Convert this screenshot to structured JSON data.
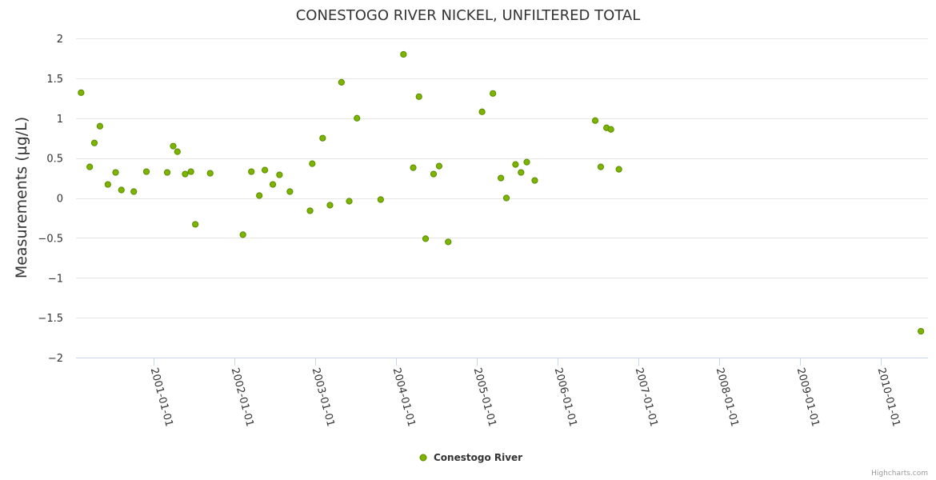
{
  "chart_data": {
    "type": "scatter",
    "title": "CONESTOGO RIVER NICKEL, UNFILTERED TOTAL",
    "xlabel": "",
    "ylabel": "Measurements (µg/L)",
    "ylim": [
      -2,
      2
    ],
    "yticks": [
      2,
      1.5,
      1,
      0.5,
      0,
      -0.5,
      -1,
      -1.5,
      -2
    ],
    "ytick_labels": [
      "2",
      "1.5",
      "1",
      "0.5",
      "0",
      "−0.5",
      "−1",
      "−1.5",
      "−2"
    ],
    "xlim": [
      "2000-01-18",
      "2010-08-01"
    ],
    "xticks": [
      "2001-01-01",
      "2002-01-01",
      "2003-01-01",
      "2004-01-01",
      "2005-01-01",
      "2006-01-01",
      "2007-01-01",
      "2008-01-01",
      "2009-01-01",
      "2010-01-01"
    ],
    "grid": true,
    "legend_position": "bottom-center",
    "marker_color": "#7cb500",
    "marker_stroke": "#5a8a00",
    "series": [
      {
        "name": "Conestogo River",
        "points": [
          [
            "2000-02-10",
            1.32
          ],
          [
            "2000-03-20",
            0.39
          ],
          [
            "2000-04-10",
            0.69
          ],
          [
            "2000-05-05",
            0.9
          ],
          [
            "2000-06-10",
            0.17
          ],
          [
            "2000-07-15",
            0.32
          ],
          [
            "2000-08-10",
            0.1
          ],
          [
            "2000-10-05",
            0.08
          ],
          [
            "2000-12-01",
            0.33
          ],
          [
            "2001-03-05",
            0.32
          ],
          [
            "2001-04-01",
            0.65
          ],
          [
            "2001-04-20",
            0.58
          ],
          [
            "2001-05-25",
            0.3
          ],
          [
            "2001-06-20",
            0.33
          ],
          [
            "2001-07-10",
            -0.33
          ],
          [
            "2001-09-15",
            0.31
          ],
          [
            "2002-02-10",
            -0.46
          ],
          [
            "2002-03-20",
            0.33
          ],
          [
            "2002-04-25",
            0.03
          ],
          [
            "2002-05-20",
            0.35
          ],
          [
            "2002-06-25",
            0.17
          ],
          [
            "2002-07-25",
            0.29
          ],
          [
            "2002-09-10",
            0.08
          ],
          [
            "2002-12-10",
            -0.16
          ],
          [
            "2002-12-20",
            0.43
          ],
          [
            "2003-02-05",
            0.75
          ],
          [
            "2003-03-10",
            -0.09
          ],
          [
            "2003-05-01",
            1.45
          ],
          [
            "2003-06-05",
            -0.04
          ],
          [
            "2003-07-10",
            1.0
          ],
          [
            "2003-10-25",
            -0.02
          ],
          [
            "2004-02-05",
            1.8
          ],
          [
            "2004-03-20",
            0.38
          ],
          [
            "2004-04-15",
            1.27
          ],
          [
            "2004-05-15",
            -0.51
          ],
          [
            "2004-06-20",
            0.3
          ],
          [
            "2004-07-15",
            0.4
          ],
          [
            "2004-08-25",
            -0.55
          ],
          [
            "2005-01-25",
            1.08
          ],
          [
            "2005-03-15",
            1.31
          ],
          [
            "2005-04-20",
            0.25
          ],
          [
            "2005-05-15",
            0.0
          ],
          [
            "2005-06-25",
            0.42
          ],
          [
            "2005-07-20",
            0.32
          ],
          [
            "2005-08-15",
            0.45
          ],
          [
            "2005-09-20",
            0.22
          ],
          [
            "2006-06-20",
            0.97
          ],
          [
            "2006-07-15",
            0.39
          ],
          [
            "2006-08-10",
            0.88
          ],
          [
            "2006-08-30",
            0.86
          ],
          [
            "2006-10-05",
            0.36
          ],
          [
            "2010-06-30",
            -1.67
          ]
        ]
      }
    ]
  },
  "credits": "Highcharts.com"
}
